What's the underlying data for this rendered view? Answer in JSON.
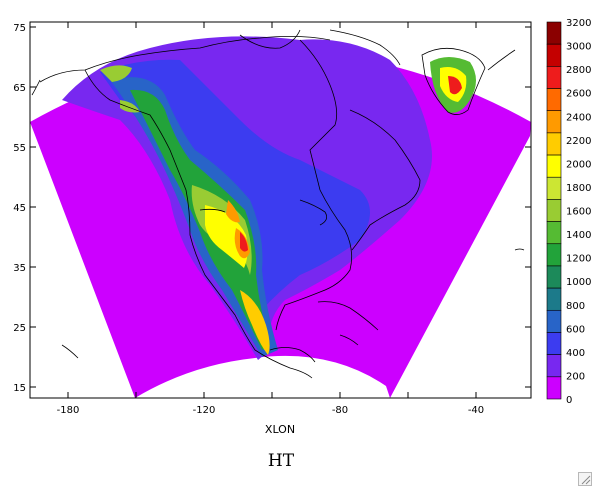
{
  "map": {
    "field_title": "HT",
    "xlabel": "XLON",
    "lon_ticks": [
      "-180",
      "-120",
      "-80",
      "-40"
    ],
    "lat_ticks": [
      "75",
      "65",
      "55",
      "45",
      "35",
      "25",
      "15"
    ],
    "colorbar": {
      "labels": [
        "3200",
        "3000",
        "2800",
        "2600",
        "2400",
        "2200",
        "2000",
        "1800",
        "1600",
        "1400",
        "1200",
        "1000",
        "800",
        "600",
        "400",
        "200",
        "0"
      ],
      "colors": [
        "#8b0000",
        "#c40000",
        "#ee1c1c",
        "#ff6a00",
        "#ff9a00",
        "#ffcc00",
        "#ffff00",
        "#cce633",
        "#99cc33",
        "#55bb33",
        "#22a33a",
        "#1c8a5a",
        "#1c7a8a",
        "#2864c8",
        "#3c3cf0",
        "#7828f0",
        "#cc00ff"
      ]
    },
    "colors": {
      "terrain_low": "#cc00ff",
      "frame": "#000000"
    }
  }
}
